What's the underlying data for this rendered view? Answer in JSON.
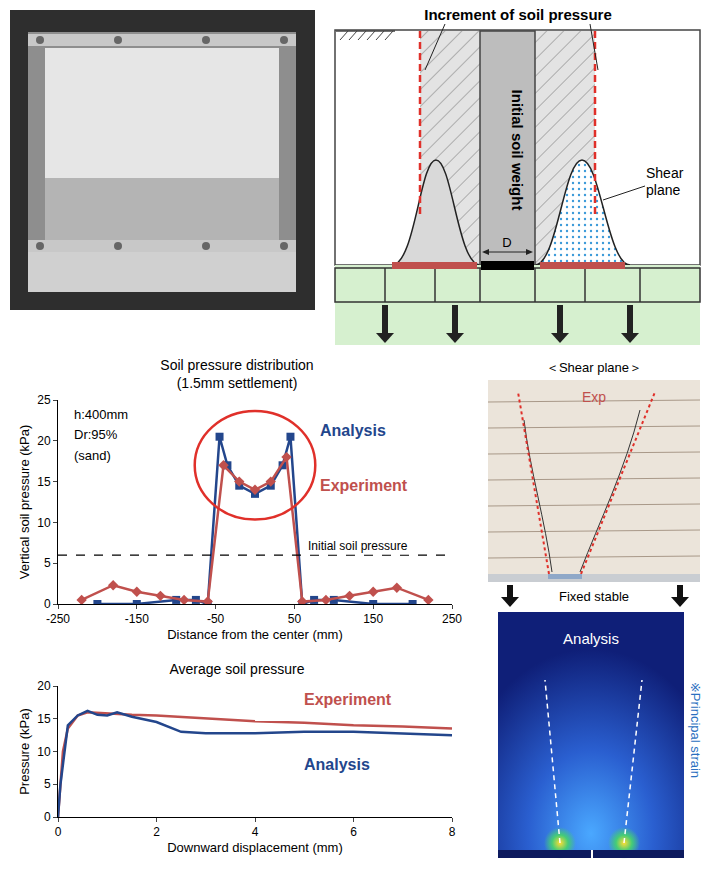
{
  "chart_data": [
    {
      "type": "line",
      "title": "Soil pressure distribution",
      "subtitle": "(1.5mm settlement)",
      "x_label": "Distance from the center (mm)",
      "y_label": "Vertical soil pressure (kPa)",
      "xlim": [
        -250,
        250
      ],
      "xticks": [
        -250,
        -150,
        -50,
        50,
        150,
        250
      ],
      "ylim": [
        0,
        25
      ],
      "yticks": [
        0,
        5,
        10,
        15,
        20,
        25
      ],
      "grid": false,
      "annotations": [
        "h:400mm",
        "Dr:95%",
        "(sand)"
      ],
      "reference_line": {
        "label": "Initial soil pressure",
        "value": 6,
        "line_style": "dash"
      },
      "series": [
        {
          "name": "Analysis",
          "color": "#23468c",
          "marker": "square",
          "line_style": "solid",
          "x": [
            -200,
            -150,
            -100,
            -75,
            -60,
            -45,
            -35,
            -20,
            0,
            20,
            35,
            45,
            60,
            75,
            100,
            150,
            200
          ],
          "values": [
            0,
            0,
            0.5,
            0.5,
            0,
            20.5,
            17,
            14.5,
            13.5,
            14.5,
            17,
            20.5,
            0,
            0.5,
            0.5,
            0,
            0
          ]
        },
        {
          "name": "Experiment",
          "color": "#c0504d",
          "marker": "diamond",
          "line_style": "solid",
          "x": [
            -220,
            -180,
            -150,
            -120,
            -90,
            -60,
            -40,
            -20,
            0,
            20,
            40,
            60,
            90,
            120,
            150,
            180,
            220
          ],
          "values": [
            0.5,
            2.3,
            1.5,
            1,
            0.5,
            0.3,
            17,
            15,
            14,
            15,
            18,
            0.3,
            0.5,
            1,
            1.5,
            2,
            0.5
          ]
        }
      ]
    },
    {
      "type": "line",
      "title": "Average soil pressure",
      "x_label": "Downward displacement (mm)",
      "y_label": "Pressure (kPa)",
      "xlim": [
        0,
        8
      ],
      "xticks": [
        0,
        2,
        4,
        6,
        8
      ],
      "ylim": [
        0,
        20
      ],
      "yticks": [
        0,
        5,
        10,
        15,
        20
      ],
      "grid": false,
      "series": [
        {
          "name": "Experiment",
          "color": "#c0504d",
          "marker": "none",
          "line_style": "solid",
          "x": [
            0,
            0.1,
            0.2,
            0.4,
            0.6,
            1,
            1.5,
            2,
            3,
            4,
            5,
            6,
            7,
            8
          ],
          "values": [
            0,
            10,
            13.5,
            15.5,
            16,
            15.8,
            15.6,
            15.5,
            15,
            14.6,
            14.4,
            14,
            13.8,
            13.5
          ]
        },
        {
          "name": "Analysis",
          "color": "#23468c",
          "marker": "none",
          "line_style": "solid",
          "x": [
            0,
            0.05,
            0.2,
            0.4,
            0.6,
            0.8,
            1,
            1.2,
            1.5,
            2,
            2.5,
            3,
            4,
            5,
            6,
            7,
            8
          ],
          "values": [
            0,
            5,
            14,
            15.5,
            16.2,
            15.6,
            15.5,
            16,
            15.3,
            14.5,
            13,
            12.8,
            12.8,
            13,
            13,
            12.7,
            12.5
          ]
        }
      ]
    }
  ],
  "diagram": {
    "schematic": {
      "top_label": "Increment of soil pressure",
      "column_label": "Initial soil weight",
      "curve_label": "Shear plane",
      "width_label": "D"
    },
    "shear_plane_panel": {
      "title": "＜Shear plane＞",
      "photo_label": "Exp",
      "support_label": "Fixed stable",
      "analysis_label": "Analysis",
      "legend_label": "※Principal strain"
    }
  }
}
